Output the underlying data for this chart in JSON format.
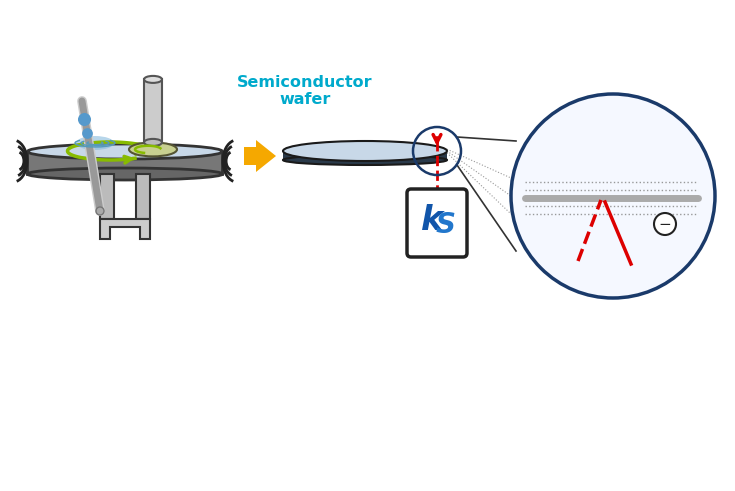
{
  "bg_color": "#ffffff",
  "text_semiconductor": "Semiconductor\nwafer",
  "text_color_semiconductor": "#00aacc",
  "wafer_fill": "#c8d8e8",
  "wafer_edge": "#1a1a1a",
  "disk_fill": "#888888",
  "disk_edge": "#333333",
  "arrow_orange": "#f5a800",
  "arrow_red": "#dd0000",
  "circle_edge": "#1a3a6a",
  "sensor_box_edge": "#222222",
  "sensor_box_fill": "#ffffff",
  "blue_logo": "#1155aa",
  "green_arrow": "#88bb00",
  "vibration_color": "#222222",
  "dotted_line_color": "#555555",
  "light_blue_drop": "#5599cc",
  "gray_tube": "#aaaaaa"
}
